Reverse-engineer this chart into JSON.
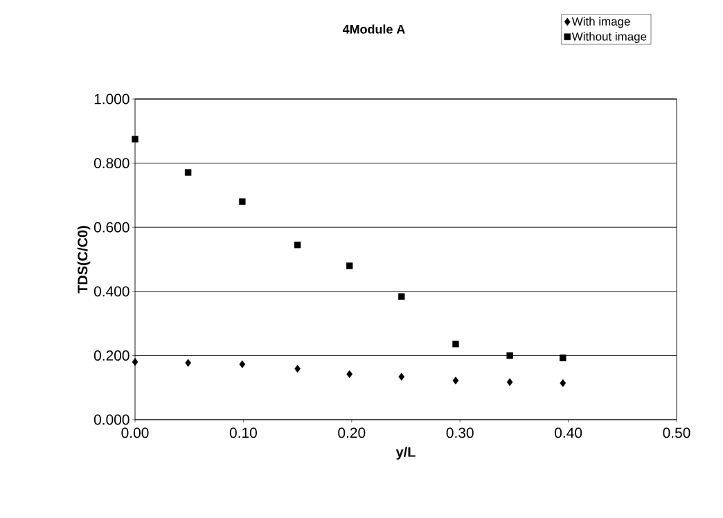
{
  "chart_data": {
    "type": "scatter",
    "title": "4Module A",
    "xlabel": "y/L",
    "ylabel": "TDS(C/C0)",
    "xlim": [
      0,
      0.5
    ],
    "ylim": [
      0,
      1
    ],
    "xticks": [
      {
        "value": 0,
        "label": "0.00"
      },
      {
        "value": 0.1,
        "label": "0.10"
      },
      {
        "value": 0.2,
        "label": "0.20"
      },
      {
        "value": 0.3,
        "label": "0.30"
      },
      {
        "value": 0.4,
        "label": "0.40"
      },
      {
        "value": 0.5,
        "label": "0.50"
      }
    ],
    "yticks": [
      {
        "value": 0,
        "label": "0.000"
      },
      {
        "value": 0.2,
        "label": "0.200"
      },
      {
        "value": 0.4,
        "label": "0.400"
      },
      {
        "value": 0.6,
        "label": "0.600"
      },
      {
        "value": 0.8,
        "label": "0.800"
      },
      {
        "value": 1,
        "label": "1.000"
      }
    ],
    "grid": "y",
    "legend": "top right",
    "x": [
      0,
      0.049,
      0.099,
      0.15,
      0.198,
      0.246,
      0.296,
      0.346,
      0.395
    ],
    "series": [
      {
        "name": "With image",
        "color": "#000000",
        "marker": "diamond",
        "values": [
          0.18,
          0.177,
          0.173,
          0.159,
          0.142,
          0.134,
          0.122,
          0.117,
          0.114
        ]
      },
      {
        "name": "Without image",
        "color": "#000000",
        "marker": "square",
        "values": [
          0.875,
          0.771,
          0.68,
          0.545,
          0.48,
          0.384,
          0.236,
          0.2,
          0.193
        ]
      }
    ]
  }
}
